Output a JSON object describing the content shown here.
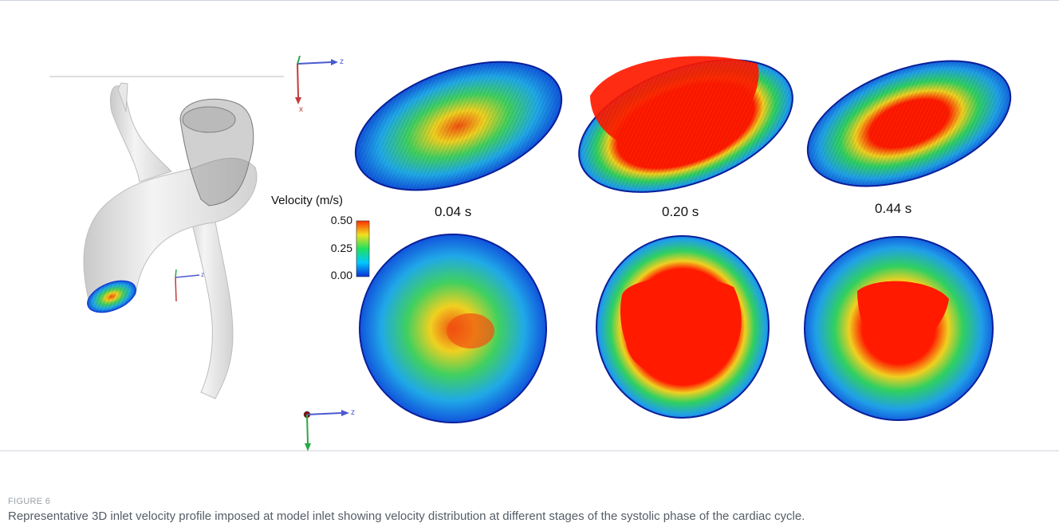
{
  "figure": {
    "label": "FIGURE 6",
    "caption": "Representative 3D inlet velocity profile imposed at model inlet showing velocity distribution at different stages of the systolic phase of the cardiac cycle."
  },
  "colorbar": {
    "title": "Velocity (m/s)",
    "ticks": [
      "0.50",
      "0.25",
      "0.00"
    ],
    "colors": [
      "#0a2fd6",
      "#00c8ff",
      "#20e060",
      "#f0e020",
      "#ff3000"
    ]
  },
  "time_labels": [
    "0.04 s",
    "0.20 s",
    "0.44 s"
  ],
  "axis_labels": {
    "z": "z",
    "x": "x",
    "y": "y"
  }
}
